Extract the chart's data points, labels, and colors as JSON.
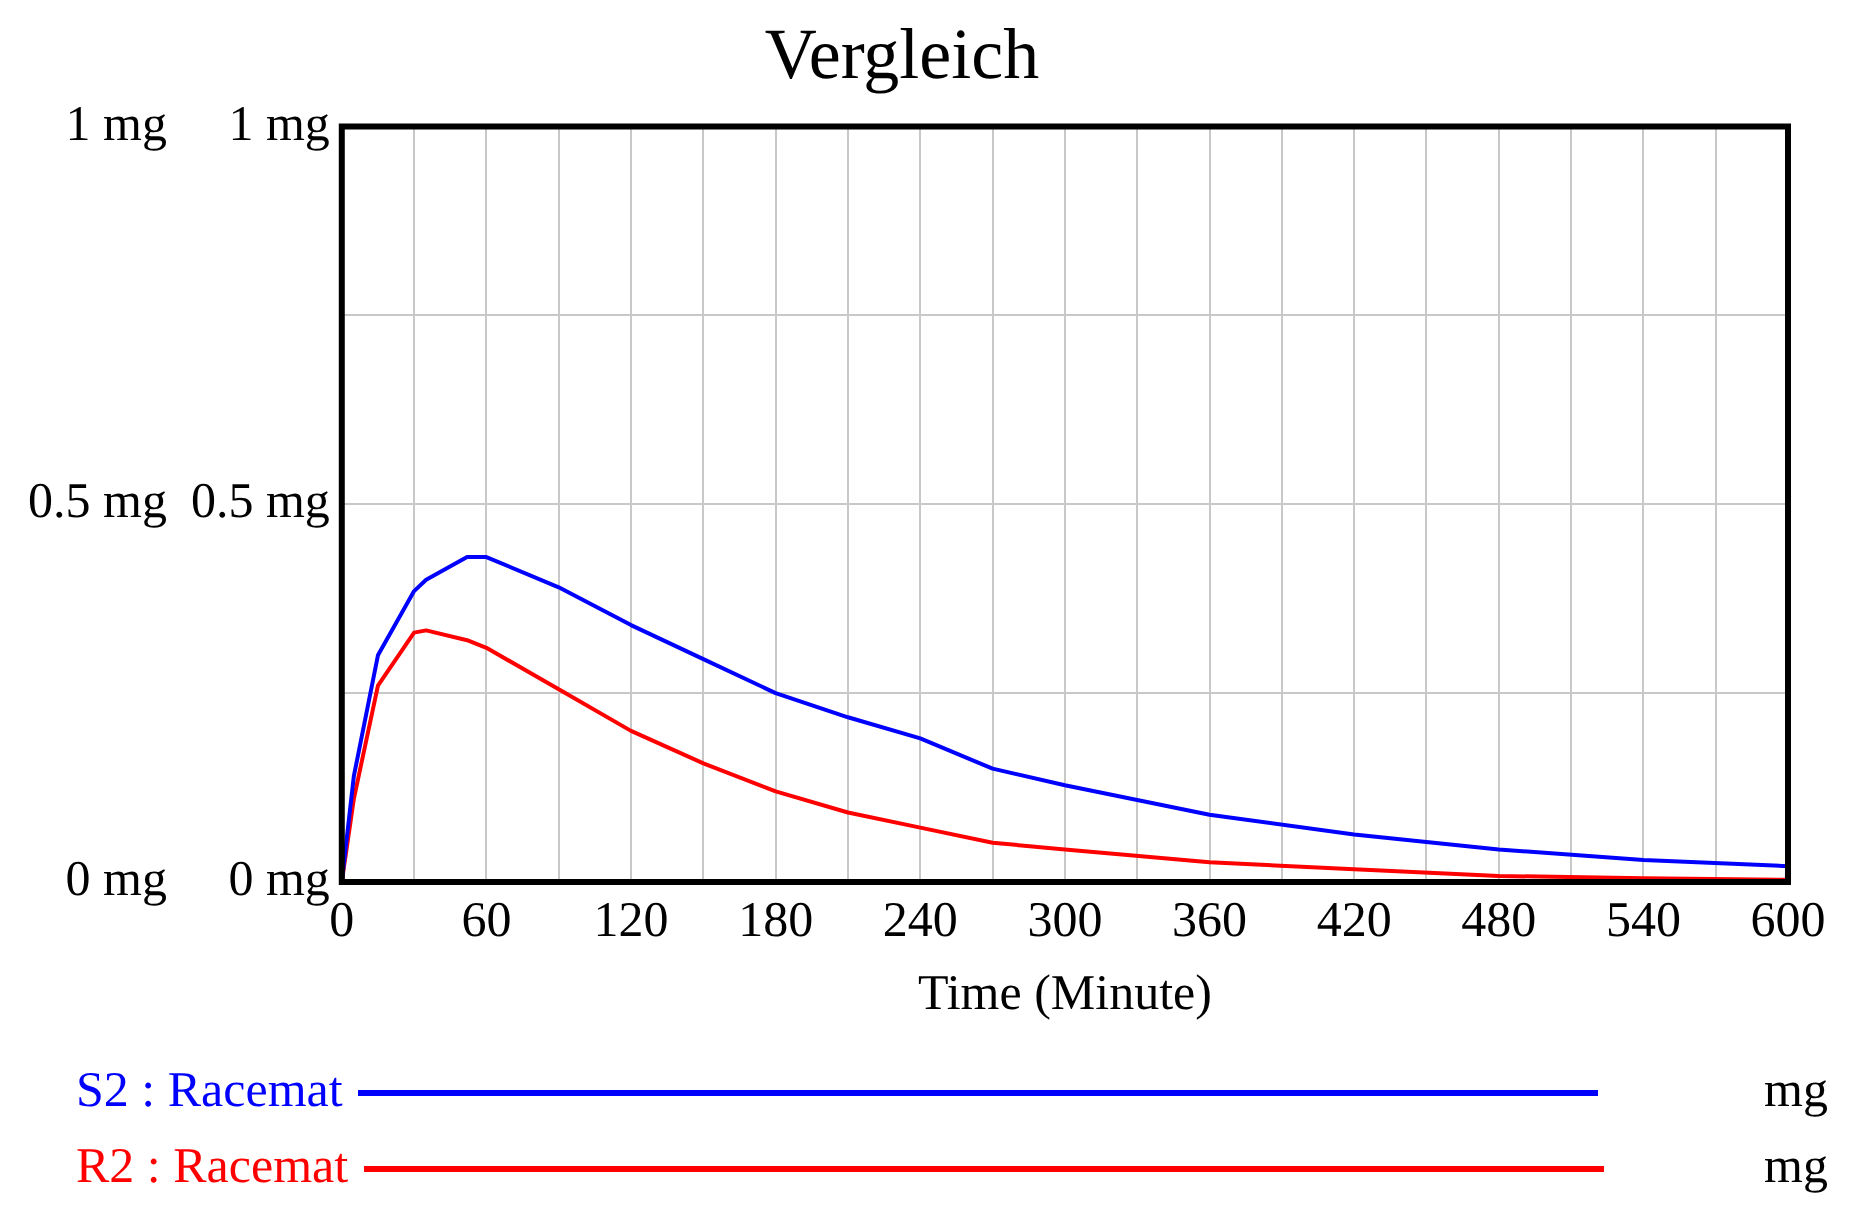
{
  "chart_data": {
    "type": "line",
    "title": "Vergleich",
    "xlabel": "Time (Minute)",
    "x": [
      0,
      5,
      15,
      30,
      35,
      52,
      60,
      90,
      120,
      150,
      180,
      210,
      240,
      270,
      300,
      360,
      420,
      480,
      540,
      600
    ],
    "series": [
      {
        "name": "S2 : Racemat",
        "color": "#0000ff",
        "values": [
          0,
          0.14,
          0.3,
          0.385,
          0.4,
          0.43,
          0.43,
          0.39,
          0.34,
          0.295,
          0.25,
          0.218,
          0.19,
          0.15,
          0.128,
          0.089,
          0.063,
          0.043,
          0.029,
          0.021
        ]
      },
      {
        "name": "R2 : Racemat",
        "color": "#ff0000",
        "axis": "y2",
        "values": [
          0,
          0.11,
          0.26,
          0.33,
          0.333,
          0.32,
          0.31,
          0.255,
          0.2,
          0.157,
          0.12,
          0.092,
          0.072,
          0.052,
          0.043,
          0.026,
          0.017,
          0.008,
          0.005,
          0.003
        ]
      }
    ],
    "xlim": [
      0,
      600
    ],
    "xticks": [
      0,
      {
        "value": 30,
        "label": null
      },
      60,
      {
        "value": 90,
        "label": null
      },
      120,
      {
        "value": 150,
        "label": null
      },
      180,
      {
        "value": 210,
        "label": null
      },
      240,
      {
        "value": 270,
        "label": null
      },
      300,
      {
        "value": 330,
        "label": null
      },
      360,
      {
        "value": 390,
        "label": null
      },
      420,
      {
        "value": 450,
        "label": null
      },
      480,
      {
        "value": 510,
        "label": null
      },
      540,
      {
        "value": 570,
        "label": null
      },
      600
    ],
    "ylim": [
      0,
      1
    ],
    "yticks": [
      {
        "value": 0,
        "label": "0 mg"
      },
      {
        "value": 0.25,
        "label": null
      },
      {
        "value": 0.5,
        "label": "0.5 mg"
      },
      {
        "value": 0.75,
        "label": null
      },
      {
        "value": 1,
        "label": "1 mg"
      }
    ],
    "y2lim": [
      0,
      1
    ],
    "y2ticks": [
      {
        "value": 0,
        "label": "0 mg"
      },
      {
        "value": 0.25,
        "label": null
      },
      {
        "value": 0.5,
        "label": "0.5 mg"
      },
      {
        "value": 0.75,
        "label": null
      },
      {
        "value": 1,
        "label": "1 mg"
      }
    ],
    "annotations": [
      "mg",
      "mg"
    ],
    "grid": true,
    "legend": "bottom",
    "marker": "none",
    "line_style": "solid"
  }
}
